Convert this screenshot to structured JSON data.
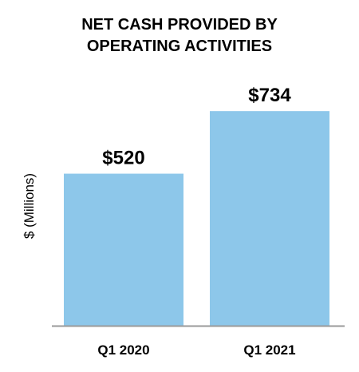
{
  "chart_data": {
    "type": "bar",
    "title_lines": [
      "NET CASH PROVIDED BY",
      "OPERATING ACTIVITIES"
    ],
    "categories": [
      "Q1 2020",
      "Q1 2021"
    ],
    "values": [
      520,
      734
    ],
    "value_labels": [
      "$520",
      "$734"
    ],
    "ylabel": "$ (Millions)",
    "xlabel": "",
    "ylim": [
      0,
      800
    ],
    "grid": false,
    "legend": "none",
    "bar_color": "#8DC7EA",
    "axis_color": "#9A9A9A"
  }
}
